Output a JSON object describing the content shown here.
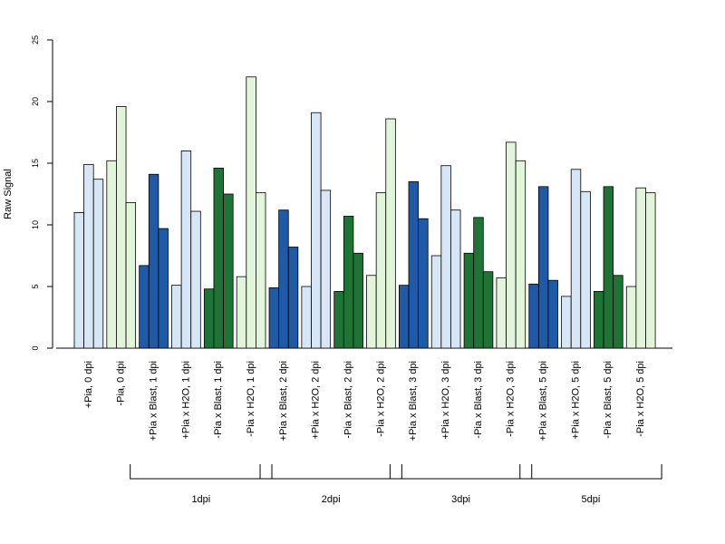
{
  "chart_data": {
    "type": "bar",
    "ylabel": "Raw Signal",
    "ylim": [
      0,
      25
    ],
    "yticks": [
      0,
      5,
      10,
      15,
      20,
      25
    ],
    "grid": false,
    "categories": [
      "+Pia, 0 dpi",
      "-Pia, 0 dpi",
      "+Pia x Blast, 1 dpi",
      "+Pia x H2O, 1 dpi",
      "-Pia x Blast, 1 dpi",
      "-Pia x H2O, 1 dpi",
      "+Pia x Blast, 2 dpi",
      "+Pia x H2O, 2 dpi",
      "-Pia x Blast, 2 dpi",
      "-Pia x H2O, 2 dpi",
      "+Pia x Blast, 3 dpi",
      "+Pia x H2O, 3 dpi",
      "-Pia x Blast, 3 dpi",
      "-Pia x H2O, 3 dpi",
      "+Pia x Blast, 5 dpi",
      "+Pia x H2O, 5 dpi",
      "-Pia x Blast, 5 dpi",
      "-Pia x H2O, 5 dpi"
    ],
    "colors": [
      "#d6e6f6",
      "#e2f5da",
      "#1f5aa8",
      "#d6e6f6",
      "#1e7434",
      "#e2f5da",
      "#1f5aa8",
      "#d6e6f6",
      "#1e7434",
      "#e2f5da",
      "#1f5aa8",
      "#d6e6f6",
      "#1e7434",
      "#e2f5da",
      "#1f5aa8",
      "#d6e6f6",
      "#1e7434",
      "#e2f5da"
    ],
    "values": [
      [
        11.0,
        14.9,
        13.7
      ],
      [
        15.2,
        19.6,
        11.8
      ],
      [
        6.7,
        14.1,
        9.7
      ],
      [
        5.1,
        16.0,
        11.1
      ],
      [
        4.8,
        14.6,
        12.5
      ],
      [
        5.8,
        22.0,
        12.6
      ],
      [
        4.9,
        11.2,
        8.2
      ],
      [
        5.0,
        19.1,
        12.8
      ],
      [
        4.6,
        10.7,
        7.7
      ],
      [
        5.9,
        12.6,
        18.6
      ],
      [
        5.1,
        13.5,
        10.5
      ],
      [
        7.5,
        14.8,
        11.2
      ],
      [
        7.7,
        10.6,
        6.2
      ],
      [
        5.7,
        16.7,
        15.2
      ],
      [
        5.2,
        13.1,
        5.5
      ],
      [
        4.2,
        14.5,
        12.7
      ],
      [
        4.6,
        13.1,
        5.9
      ],
      [
        5.0,
        13.0,
        12.6
      ]
    ],
    "groups": [
      {
        "label": "1dpi",
        "start": 2,
        "end": 5
      },
      {
        "label": "2dpi",
        "start": 6,
        "end": 9
      },
      {
        "label": "3dpi",
        "start": 10,
        "end": 13
      },
      {
        "label": "5dpi",
        "start": 14,
        "end": 17
      }
    ]
  }
}
